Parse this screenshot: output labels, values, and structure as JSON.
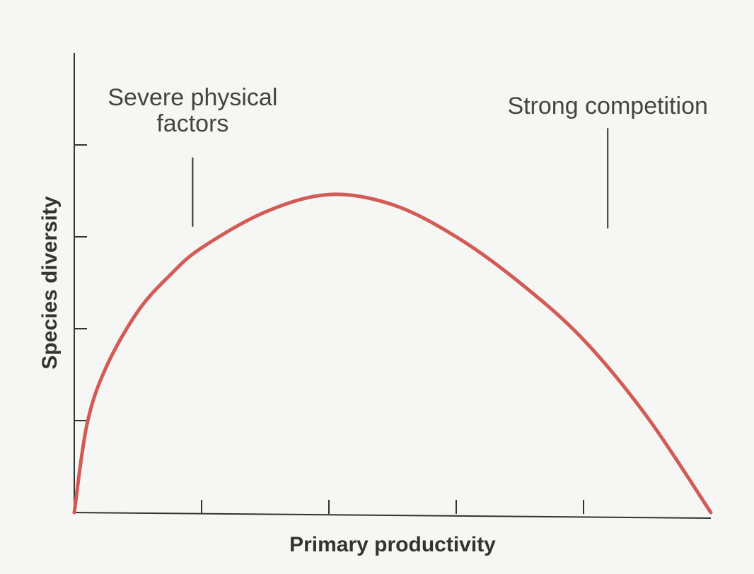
{
  "chart_data": {
    "type": "line",
    "x_label": "Primary productivity",
    "y_label": "Species diversity",
    "x": [
      0,
      0.1,
      0.25,
      0.5,
      0.75,
      1,
      1.5,
      2,
      2.5,
      3,
      3.5,
      4,
      4.5,
      5
    ],
    "series": [
      {
        "color": "#d25b55",
        "values": [
          0,
          0.96,
          1.58,
          2.19,
          2.58,
          2.88,
          3.27,
          3.46,
          3.35,
          3.0,
          2.5,
          1.88,
          1.04,
          0
        ]
      }
    ],
    "xlim": [
      0,
      5
    ],
    "xticks": [
      1,
      2,
      3,
      4
    ],
    "ylim": [
      0,
      5
    ],
    "yticks": [
      1,
      2,
      3,
      4
    ],
    "tick_labels": false,
    "grid": false,
    "annotations": [
      {
        "text": "Severe physical factors",
        "x": 0.93,
        "y": 3.11
      },
      {
        "text": "Strong competition",
        "x": 4.19,
        "y": 3.09
      }
    ]
  }
}
